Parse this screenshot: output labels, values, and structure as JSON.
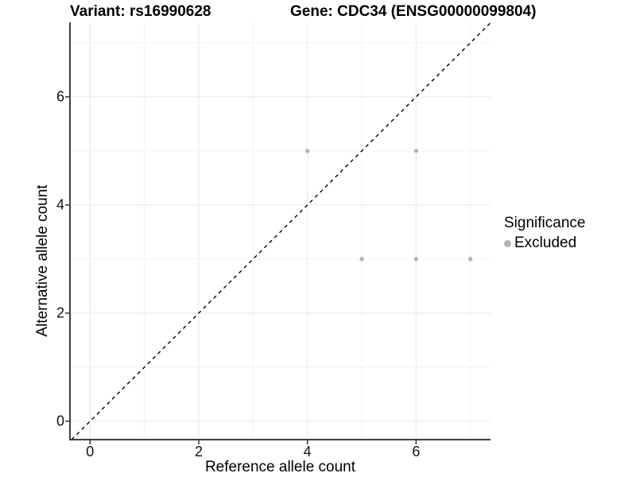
{
  "titles": {
    "left": "Variant: rs16990628",
    "right": "Gene: CDC34 (ENSG00000099804)"
  },
  "chart_data": {
    "type": "scatter",
    "xlabel": "Reference allele count",
    "ylabel": "Alternative allele count",
    "x_ticks": [
      0,
      2,
      4,
      6
    ],
    "y_ticks": [
      0,
      2,
      4,
      6
    ],
    "x_minor": [
      1,
      3,
      5,
      7
    ],
    "y_minor": [
      1,
      3,
      5,
      7
    ],
    "xlim": [
      -0.37,
      7.37
    ],
    "ylim": [
      -0.34,
      7.38
    ],
    "grid": true,
    "reference_line": {
      "kind": "identity",
      "style": "dashed",
      "color": "#000000"
    },
    "series": [
      {
        "name": "Excluded",
        "color": "#b3b3b3",
        "points": [
          {
            "x": 4,
            "y": 5
          },
          {
            "x": 6,
            "y": 5
          },
          {
            "x": 5,
            "y": 3
          },
          {
            "x": 6,
            "y": 3
          },
          {
            "x": 7,
            "y": 3
          }
        ]
      }
    ],
    "legend": {
      "title": "Significance",
      "position": "right",
      "items": [
        {
          "label": "Excluded",
          "color": "#b3b3b3"
        }
      ]
    }
  },
  "colors": {
    "background": "#ffffff",
    "grid_major": "#e7e7e7",
    "grid_minor": "#f3f3f3",
    "axis_line": "#3f3f3f",
    "tick_mark": "#333333",
    "point": "#b3b3b3",
    "reference_line": "#000000"
  }
}
